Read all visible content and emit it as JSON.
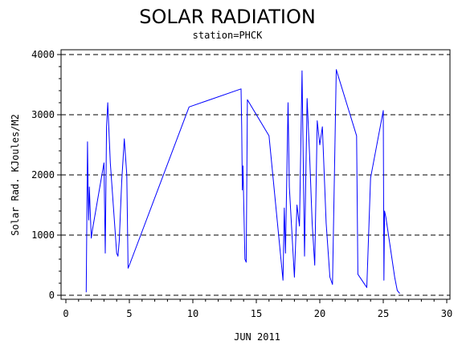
{
  "chart_data": {
    "type": "line",
    "title": "SOLAR RADIATION",
    "subtitle": "station=PHCK",
    "xlabel": "JUN 2011",
    "ylabel": "Solar Rad. KJoules/M2",
    "xlim": [
      0,
      30
    ],
    "ylim": [
      0,
      4000
    ],
    "x_ticks": [
      0,
      5,
      10,
      15,
      20,
      25,
      30
    ],
    "y_ticks": [
      0,
      1000,
      2000,
      3000,
      4000
    ],
    "x_tick_labels": [
      "0",
      "5",
      "10",
      "15",
      "20",
      "25",
      "30"
    ],
    "y_tick_labels": [
      "0",
      "1000",
      "2000",
      "3000",
      "4000"
    ],
    "grid": "horizontal dashed",
    "line_color": "#0000ff",
    "series": [
      {
        "values": [
          [
            1.6,
            50
          ],
          [
            1.7,
            2550
          ],
          [
            1.75,
            1700
          ],
          [
            1.8,
            1250
          ],
          [
            1.85,
            1800
          ],
          [
            1.9,
            1500
          ],
          [
            2.0,
            950
          ],
          [
            2.1,
            1100
          ],
          [
            3.0,
            2200
          ],
          [
            3.1,
            700
          ],
          [
            3.2,
            2800
          ],
          [
            3.3,
            3200
          ],
          [
            3.4,
            2700
          ],
          [
            3.5,
            2200
          ],
          [
            4.0,
            700
          ],
          [
            4.1,
            650
          ],
          [
            4.2,
            900
          ],
          [
            4.4,
            1900
          ],
          [
            4.6,
            2600
          ],
          [
            4.8,
            2000
          ],
          [
            4.9,
            450
          ],
          [
            5.0,
            500
          ],
          [
            9.7,
            3130
          ],
          [
            13.8,
            3430
          ],
          [
            13.85,
            2800
          ],
          [
            13.9,
            1750
          ],
          [
            13.95,
            2150
          ],
          [
            14.1,
            600
          ],
          [
            14.2,
            550
          ],
          [
            14.3,
            3250
          ],
          [
            16.0,
            2650
          ],
          [
            17.1,
            250
          ],
          [
            17.2,
            1450
          ],
          [
            17.3,
            700
          ],
          [
            17.5,
            3200
          ],
          [
            17.6,
            1800
          ],
          [
            18.0,
            300
          ],
          [
            18.2,
            1500
          ],
          [
            18.4,
            1150
          ],
          [
            18.6,
            3730
          ],
          [
            18.8,
            650
          ],
          [
            19.0,
            3270
          ],
          [
            19.2,
            2300
          ],
          [
            19.4,
            1200
          ],
          [
            19.6,
            500
          ],
          [
            19.8,
            2900
          ],
          [
            20.0,
            2500
          ],
          [
            20.2,
            2800
          ],
          [
            20.5,
            1200
          ],
          [
            20.8,
            300
          ],
          [
            21.0,
            180
          ],
          [
            21.3,
            3750
          ],
          [
            22.9,
            2650
          ],
          [
            23.0,
            350
          ],
          [
            23.7,
            130
          ],
          [
            24.0,
            1950
          ],
          [
            25.0,
            3070
          ],
          [
            25.05,
            250
          ],
          [
            25.1,
            1400
          ],
          [
            25.2,
            1300
          ],
          [
            25.9,
            300
          ],
          [
            26.1,
            80
          ],
          [
            26.3,
            30
          ]
        ]
      }
    ]
  }
}
